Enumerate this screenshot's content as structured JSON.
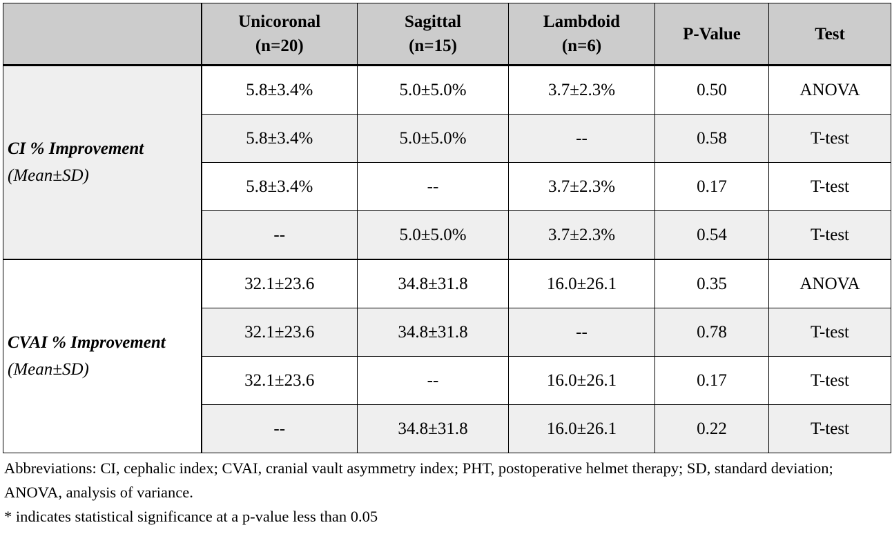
{
  "table": {
    "columns": [
      "",
      "Unicoronal",
      "Sagittal",
      "Lambdoid",
      "P-Value",
      "Test"
    ],
    "column_counts": [
      "",
      "(n=20)",
      "(n=15)",
      "(n=6)",
      "",
      ""
    ],
    "groups": [
      {
        "title": "CI % Improvement",
        "subtitle": "(Mean±SD)",
        "rows": [
          [
            "5.8±3.4%",
            "5.0±5.0%",
            "3.7±2.3%",
            "0.50",
            "ANOVA"
          ],
          [
            "5.8±3.4%",
            "5.0±5.0%",
            "--",
            "0.58",
            "T-test"
          ],
          [
            "5.8±3.4%",
            "--",
            "3.7±2.3%",
            "0.17",
            "T-test"
          ],
          [
            "--",
            "5.0±5.0%",
            "3.7±2.3%",
            "0.54",
            "T-test"
          ]
        ]
      },
      {
        "title": "CVAI % Improvement",
        "subtitle": "(Mean±SD)",
        "rows": [
          [
            "32.1±23.6",
            "34.8±31.8",
            "16.0±26.1",
            "0.35",
            "ANOVA"
          ],
          [
            "32.1±23.6",
            "34.8±31.8",
            "--",
            "0.78",
            "T-test"
          ],
          [
            "32.1±23.6",
            "--",
            "16.0±26.1",
            "0.17",
            "T-test"
          ],
          [
            "--",
            "34.8±31.8",
            "16.0±26.1",
            "0.22",
            "T-test"
          ]
        ]
      }
    ]
  },
  "footnote": {
    "abbreviations": "Abbreviations: CI, cephalic index; CVAI, cranial vault asymmetry index; PHT, postoperative helmet therapy; SD, standard deviation; ANOVA, analysis of variance.",
    "significance": "* indicates statistical significance at a p-value less than 0.05"
  }
}
